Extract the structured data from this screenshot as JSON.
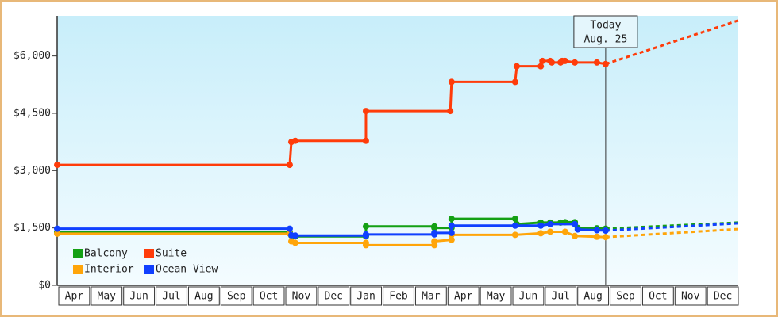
{
  "chart_data": {
    "type": "line",
    "categories": [
      "Apr",
      "May",
      "Jun",
      "Jul",
      "Aug",
      "Sep",
      "Oct",
      "Nov",
      "Dec",
      "Jan",
      "Feb",
      "Mar",
      "Apr",
      "May",
      "Jun",
      "Jul",
      "Aug",
      "Sep",
      "Oct",
      "Nov",
      "Dec"
    ],
    "xlim": [
      0,
      21
    ],
    "ylim": [
      0,
      7050
    ],
    "yticks": [
      {
        "value": 0,
        "label": "$0"
      },
      {
        "value": 1500,
        "label": "$1,500"
      },
      {
        "value": 3000,
        "label": "$3,000"
      },
      {
        "value": 4500,
        "label": "$4,500"
      },
      {
        "value": 6000,
        "label": "$6,000"
      }
    ],
    "annotation": {
      "x": 16.91,
      "lines": [
        "Today",
        "Aug. 25"
      ]
    },
    "series": [
      {
        "name": "Balcony",
        "color": "#14a014",
        "x": [
          0,
          7.17,
          7.22,
          7.34,
          9.52,
          9.52,
          11.63,
          11.63,
          12.16,
          12.16,
          14.12,
          14.17,
          14.91,
          15.2,
          15.52,
          15.66,
          15.96,
          16.05,
          16.64,
          16.91
        ],
        "values": [
          1390,
          1390,
          1300,
          1280,
          1280,
          1540,
          1540,
          1500,
          1500,
          1740,
          1740,
          1600,
          1640,
          1640,
          1640,
          1650,
          1650,
          1500,
          1490,
          1480
        ],
        "forecast_x": 21,
        "forecast_value": 1640
      },
      {
        "name": "Suite",
        "color": "#ff3c0a",
        "x": [
          0,
          7.17,
          7.22,
          7.34,
          9.52,
          9.52,
          12.12,
          12.16,
          14.12,
          14.17,
          14.91,
          14.96,
          15.2,
          15.25,
          15.52,
          15.57,
          15.66,
          15.96,
          16.64,
          16.91
        ],
        "values": [
          3150,
          3150,
          3750,
          3780,
          3780,
          4560,
          4560,
          5320,
          5320,
          5730,
          5730,
          5870,
          5870,
          5830,
          5830,
          5870,
          5870,
          5830,
          5830,
          5790
        ],
        "forecast_x": 21,
        "forecast_value": 6930
      },
      {
        "name": "Interior",
        "color": "#ffa50a",
        "x": [
          0,
          7.17,
          7.22,
          7.34,
          9.52,
          9.52,
          11.63,
          11.63,
          12.16,
          12.16,
          14.12,
          14.91,
          15.2,
          15.66,
          15.96,
          16.64,
          16.91
        ],
        "values": [
          1350,
          1350,
          1150,
          1110,
          1110,
          1050,
          1050,
          1150,
          1190,
          1320,
          1320,
          1360,
          1400,
          1400,
          1290,
          1270,
          1260
        ],
        "forecast_x": 21,
        "forecast_value": 1470
      },
      {
        "name": "Ocean View",
        "color": "#1040ff",
        "x": [
          0,
          7.17,
          7.22,
          7.34,
          9.52,
          9.52,
          11.63,
          11.63,
          12.16,
          12.16,
          14.12,
          14.91,
          15.2,
          15.96,
          16.05,
          16.64,
          16.91
        ],
        "values": [
          1480,
          1480,
          1310,
          1300,
          1300,
          1330,
          1330,
          1370,
          1370,
          1560,
          1560,
          1560,
          1600,
          1600,
          1460,
          1440,
          1430
        ],
        "forecast_x": 21,
        "forecast_value": 1620
      }
    ]
  }
}
